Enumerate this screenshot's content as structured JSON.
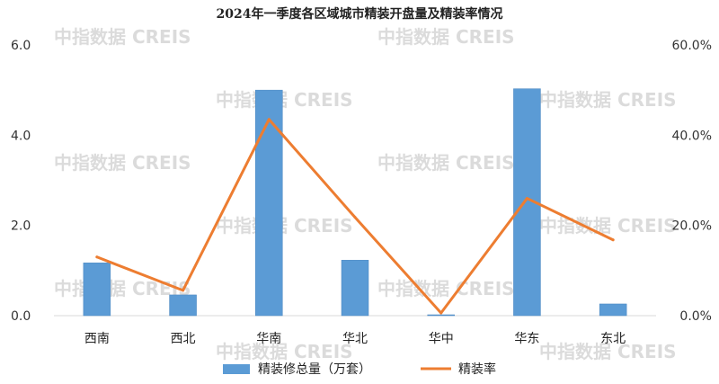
{
  "chart_data": {
    "type": "bar+line",
    "title": "2024年一季度各区域城市精装开盘量及精装率情况",
    "categories": [
      "西南",
      "西北",
      "华南",
      "华北",
      "华中",
      "华东",
      "东北"
    ],
    "series": [
      {
        "name": "精装修总量（万套）",
        "type": "bar",
        "axis": "left",
        "color": "#5B9BD5",
        "values": [
          1.17,
          0.46,
          5.0,
          1.23,
          0.02,
          5.03,
          0.26
        ]
      },
      {
        "name": "精装率",
        "type": "line",
        "axis": "right",
        "color": "#ED7D31",
        "values": [
          13.0,
          5.6,
          43.5,
          21.8,
          0.6,
          26.0,
          16.8
        ]
      }
    ],
    "y_left": {
      "min": 0,
      "max": 6,
      "ticks": [
        "0.0",
        "2.0",
        "4.0",
        "6.0"
      ]
    },
    "y_right": {
      "min": 0,
      "max": 60,
      "ticks": [
        "0.0%",
        "20.0%",
        "40.0%",
        "60.0%"
      ]
    },
    "grid": false,
    "legend": "bottom"
  },
  "watermark": "中指数据 CREIS"
}
